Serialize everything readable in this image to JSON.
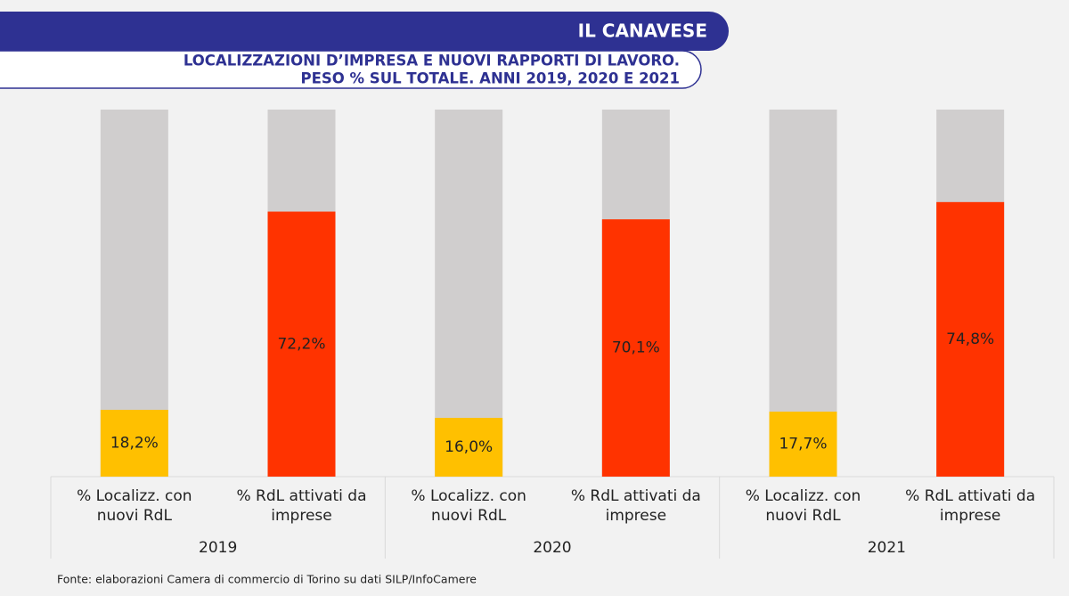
{
  "chart_data": {
    "type": "bar",
    "header": "IL CANAVESE",
    "title": "LOCALIZZAZIONI D’IMPRESA E NUOVI RAPPORTI DI LAVORO.",
    "subtitle": "PESO % SUL TOTALE. ANNI 2019, 2020 E 2021",
    "categories": [
      "2019",
      "2020",
      "2021"
    ],
    "series": [
      {
        "name": "% Localizz. con nuovi RdL",
        "color": "#ffc000",
        "values": [
          18.2,
          16.0,
          17.7
        ],
        "value_labels": [
          "18,2%",
          "16,0%",
          "17,7%"
        ]
      },
      {
        "name": "% RdL attivati da imprese",
        "color": "#ff3300",
        "values": [
          72.2,
          70.1,
          74.8
        ],
        "value_labels": [
          "72,2%",
          "70,1%",
          "74,8%"
        ]
      }
    ],
    "ylim": [
      0,
      100
    ],
    "track_color": "#d0cece",
    "source": "Fonte: elaborazioni Camera di commercio di Torino su dati SILP/InfoCamere"
  }
}
